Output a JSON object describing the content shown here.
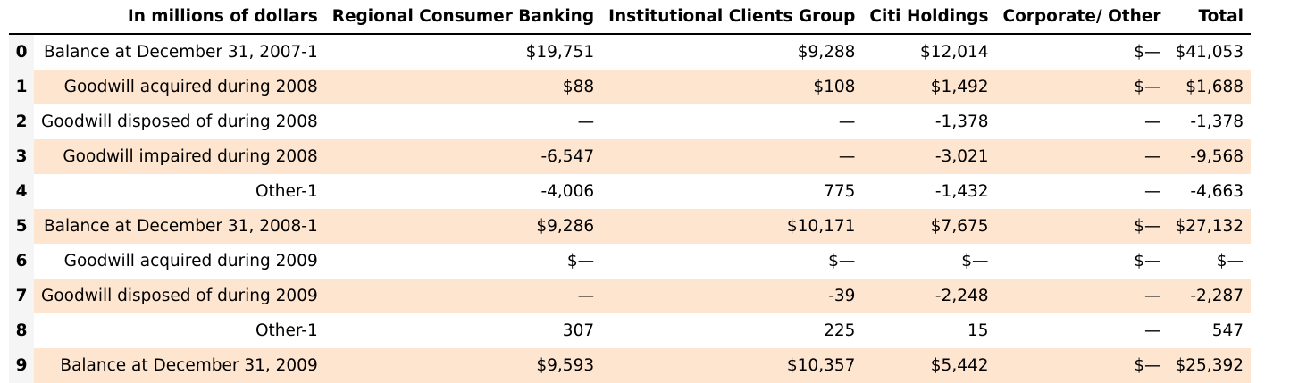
{
  "table": {
    "columns": [
      "In millions of dollars",
      "Regional Consumer Banking",
      "Institutional Clients Group",
      "Citi Holdings",
      "Corporate/ Other",
      "Total"
    ],
    "rows": [
      {
        "index": "0",
        "cells": [
          "Balance at December 31, 2007-1",
          "$19,751",
          "$9,288",
          "$12,014",
          "$—",
          "$41,053"
        ]
      },
      {
        "index": "1",
        "cells": [
          "Goodwill acquired during 2008",
          "$88",
          "$108",
          "$1,492",
          "$—",
          "$1,688"
        ]
      },
      {
        "index": "2",
        "cells": [
          "Goodwill disposed of during 2008",
          "—",
          "—",
          "-1,378",
          "—",
          "-1,378"
        ]
      },
      {
        "index": "3",
        "cells": [
          "Goodwill impaired during 2008",
          "-6,547",
          "—",
          "-3,021",
          "—",
          "-9,568"
        ]
      },
      {
        "index": "4",
        "cells": [
          "Other-1",
          "-4,006",
          "775",
          "-1,432",
          "—",
          "-4,663"
        ]
      },
      {
        "index": "5",
        "cells": [
          "Balance at December 31, 2008-1",
          "$9,286",
          "$10,171",
          "$7,675",
          "$—",
          "$27,132"
        ]
      },
      {
        "index": "6",
        "cells": [
          "Goodwill acquired during 2009",
          "$—",
          "$—",
          "$—",
          "$—",
          "$—"
        ]
      },
      {
        "index": "7",
        "cells": [
          "Goodwill disposed of during 2009",
          "—",
          "-39",
          "-2,248",
          "—",
          "-2,287"
        ]
      },
      {
        "index": "8",
        "cells": [
          "Other-1",
          "307",
          "225",
          "15",
          "—",
          "547"
        ]
      },
      {
        "index": "9",
        "cells": [
          "Balance at December 31, 2009",
          "$9,593",
          "$10,357",
          "$5,442",
          "$—",
          "$25,392"
        ]
      }
    ]
  }
}
